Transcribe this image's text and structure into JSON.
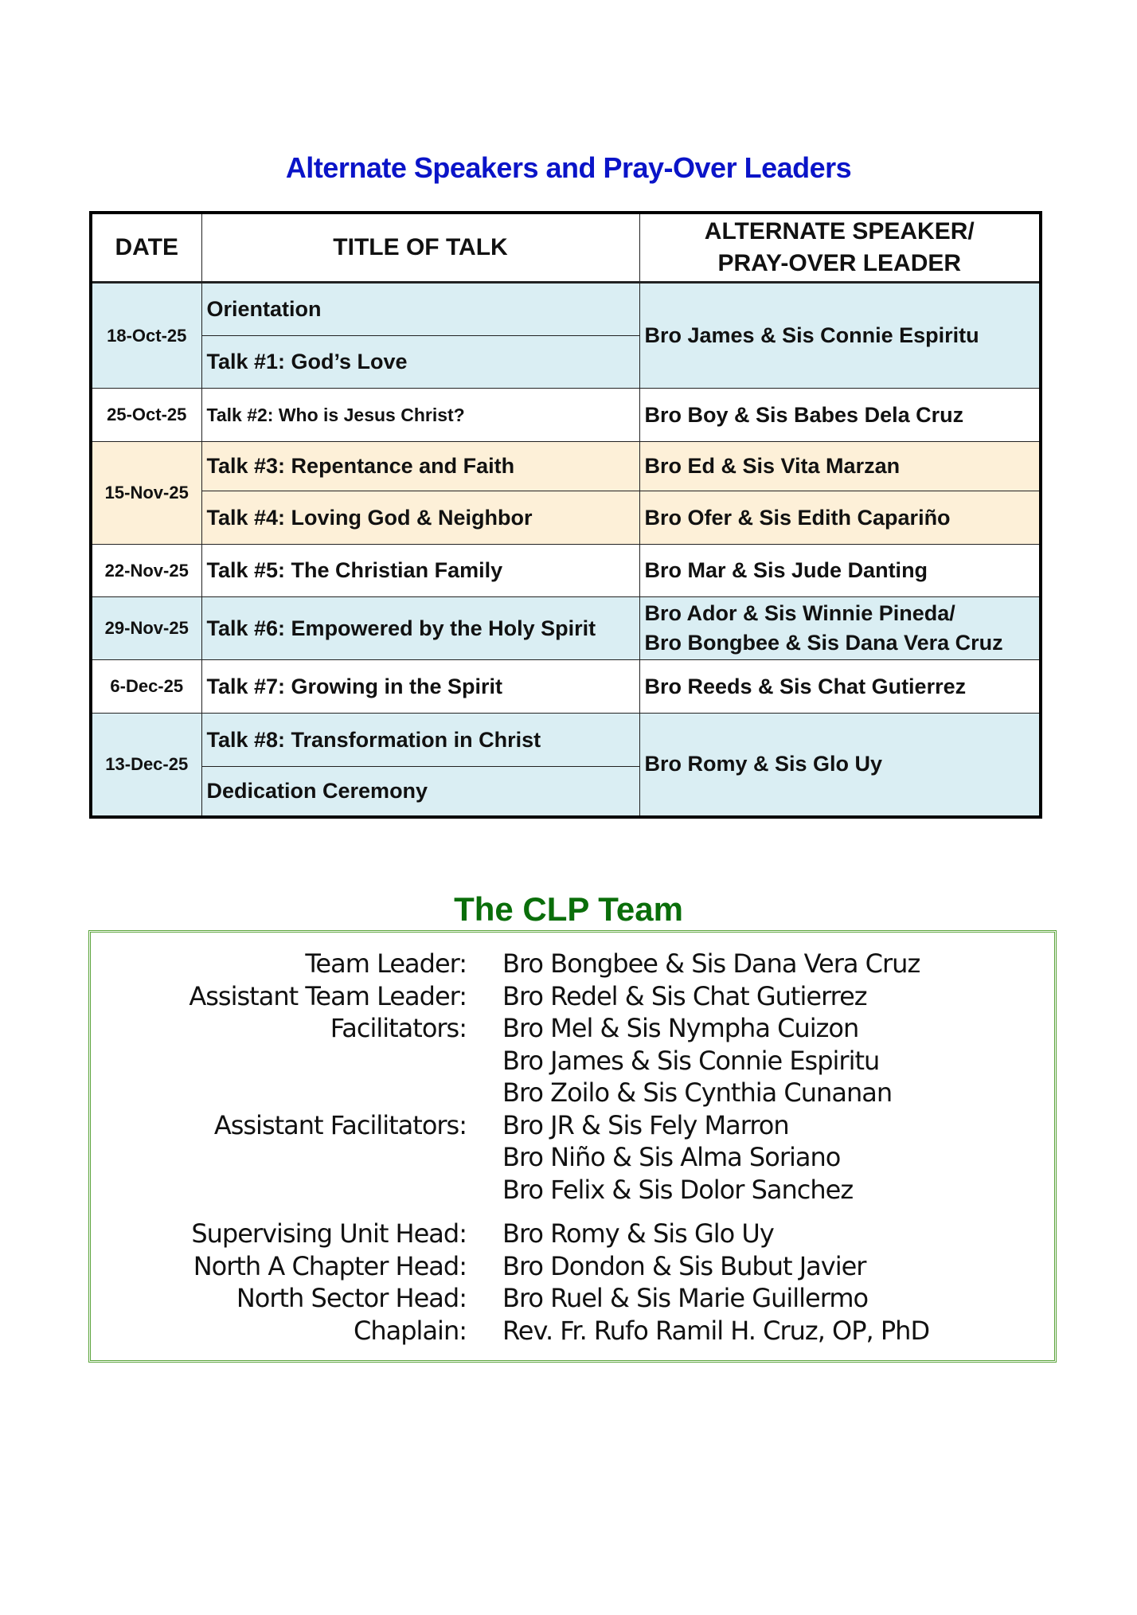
{
  "schedule": {
    "title": "Alternate Speakers and Pray-Over Leaders",
    "headers": {
      "date": "DATE",
      "title": "TITLE OF TALK",
      "speaker_line1": "ALTERNATE SPEAKER/",
      "speaker_line2": "PRAY-OVER LEADER"
    },
    "rows": [
      {
        "date": "18-Oct-25",
        "talks": [
          "Orientation",
          "Talk #1: God’s Love"
        ],
        "speaker": "Bro James & Sis Connie Espiritu"
      },
      {
        "date": "25-Oct-25",
        "talks": [
          "Talk #2: Who is Jesus Christ?"
        ],
        "speaker": "Bro Boy & Sis Babes Dela Cruz"
      },
      {
        "date": "15-Nov-25",
        "talks": [
          "Talk #3: Repentance and Faith",
          "Talk #4: Loving God & Neighbor"
        ],
        "speakers": [
          "Bro Ed & Sis Vita Marzan",
          "Bro Ofer & Sis Edith Capariño"
        ]
      },
      {
        "date": "22-Nov-25",
        "talks": [
          "Talk #5: The Christian Family"
        ],
        "speaker": "Bro Mar & Sis Jude Danting"
      },
      {
        "date": "29-Nov-25",
        "talks": [
          "Talk #6: Empowered by the Holy Spirit"
        ],
        "speakers": [
          "Bro Ador & Sis Winnie Pineda/",
          "Bro Bongbee & Sis Dana Vera Cruz"
        ]
      },
      {
        "date": "6-Dec-25",
        "talks": [
          "Talk #7: Growing in the Spirit"
        ],
        "speaker": "Bro Reeds & Sis Chat Gutierrez"
      },
      {
        "date": "13-Dec-25",
        "talks": [
          "Talk #8: Transformation in Christ",
          "Dedication Ceremony"
        ],
        "speaker": "Bro Romy & Sis Glo Uy"
      }
    ],
    "colors": {
      "title": "#0a14c8",
      "blue_row": "#daeef3",
      "tan_row": "#fdf0d8"
    }
  },
  "team": {
    "title": "The CLP Team",
    "rows": [
      {
        "label": "Team Leader:",
        "value": "Bro Bongbee & Sis Dana Vera Cruz"
      },
      {
        "label": "Assistant Team Leader:",
        "value": "Bro Redel & Sis Chat Gutierrez"
      },
      {
        "label": "Facilitators:",
        "value": "Bro Mel & Sis Nympha Cuizon"
      },
      {
        "label": "",
        "value": "Bro James & Sis Connie Espiritu"
      },
      {
        "label": "",
        "value": "Bro Zoilo & Sis Cynthia Cunanan"
      },
      {
        "label": "Assistant Facilitators:",
        "value": "Bro JR & Sis Fely Marron"
      },
      {
        "label": "",
        "value": "Bro Niño & Sis Alma Soriano"
      },
      {
        "label": "",
        "value": "Bro Felix & Sis Dolor Sanchez"
      },
      {
        "label": "Supervising Unit Head:",
        "value": "Bro Romy & Sis Glo Uy"
      },
      {
        "label": "North A Chapter Head:",
        "value": "Bro Dondon & Sis Bubut Javier"
      },
      {
        "label": "North Sector Head:",
        "value": "Bro Ruel & Sis Marie Guillermo"
      },
      {
        "label": "Chaplain:",
        "value": "Rev. Fr. Rufo Ramil H. Cruz, OP, PhD"
      }
    ],
    "colors": {
      "title": "#0a6e0a",
      "border": "#5aa33a"
    }
  }
}
